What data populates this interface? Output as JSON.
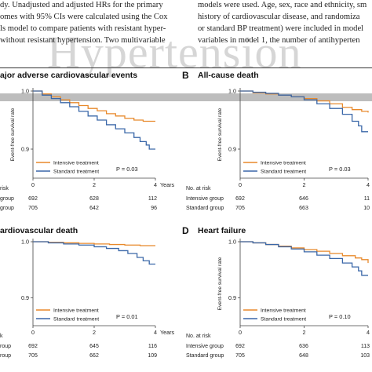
{
  "header_text": {
    "left_lines": [
      "dy. Unadjusted and adjusted HRs for the primary",
      "omes with 95% CIs were calculated using the Cox",
      "ls model to compare patients with resistant hyper-",
      "without resistant hypertension. Two multivariable"
    ],
    "right_lines": [
      "models were used. Age, sex, race and ethnicity, sm",
      "history of cardiovascular disease, and randomiza",
      "or standard BP treatment) were included in model",
      "variables in model 1, the number of antihyperten"
    ],
    "watermark": "Hypertension"
  },
  "colors": {
    "intensive": "#E8892B",
    "standard": "#3A67A8",
    "axis": "#444444"
  },
  "chart_data": [
    {
      "type": "line",
      "letter": "",
      "title": "ajor adverse cardiovascular events",
      "ylabel": "Event-free survival rate",
      "ylim": [
        0.85,
        1.0
      ],
      "xlim": [
        0,
        4
      ],
      "y_ticks": [
        {
          "v": 1.0,
          "label": "1.0"
        },
        {
          "v": 0.9,
          "label": "0.9"
        }
      ],
      "x_ticks": [
        {
          "v": 0,
          "label": "0"
        },
        {
          "v": 2,
          "label": "2"
        },
        {
          "v": 4,
          "label": "4"
        }
      ],
      "x_unit": "Years",
      "p_value": "P = 0.03",
      "series": [
        {
          "name": "Intensive treatment",
          "color": "#E8892B",
          "x": [
            0,
            0.3,
            0.6,
            0.9,
            1.2,
            1.5,
            1.8,
            2.1,
            2.4,
            2.7,
            3.0,
            3.3,
            3.6,
            3.8,
            4.0
          ],
          "y": [
            1.0,
            0.995,
            0.99,
            0.985,
            0.98,
            0.975,
            0.97,
            0.966,
            0.961,
            0.957,
            0.953,
            0.95,
            0.948,
            0.948,
            0.948
          ]
        },
        {
          "name": "Standard treatment",
          "color": "#3A67A8",
          "x": [
            0,
            0.3,
            0.6,
            0.9,
            1.2,
            1.5,
            1.8,
            2.1,
            2.4,
            2.7,
            3.0,
            3.3,
            3.5,
            3.7,
            3.8,
            4.0
          ],
          "y": [
            1.0,
            0.993,
            0.987,
            0.98,
            0.973,
            0.965,
            0.957,
            0.95,
            0.942,
            0.935,
            0.928,
            0.92,
            0.913,
            0.907,
            0.9,
            0.9
          ]
        }
      ],
      "risk": {
        "header": "risk",
        "rows": [
          {
            "label": "group",
            "values": [
              "692",
              "628",
              "112"
            ]
          },
          {
            "label": "group",
            "values": [
              "705",
              "642",
              "96"
            ]
          }
        ]
      }
    },
    {
      "type": "line",
      "letter": "B",
      "title": "All-cause death",
      "ylabel": "Event-free survival rate",
      "ylim": [
        0.85,
        1.0
      ],
      "xlim": [
        0,
        4
      ],
      "y_ticks": [
        {
          "v": 1.0,
          "label": "1.0"
        },
        {
          "v": 0.9,
          "label": "0.9"
        }
      ],
      "x_ticks": [
        {
          "v": 0,
          "label": "0"
        },
        {
          "v": 2,
          "label": "2"
        },
        {
          "v": 4,
          "label": "4"
        }
      ],
      "x_unit": "",
      "p_value": "P = 0.03",
      "series": [
        {
          "name": "Intensive treatment",
          "color": "#E8892B",
          "x": [
            0,
            0.4,
            0.8,
            1.2,
            1.6,
            2.0,
            2.4,
            2.8,
            3.2,
            3.5,
            3.8,
            4.0
          ],
          "y": [
            1.0,
            0.997,
            0.995,
            0.993,
            0.99,
            0.987,
            0.983,
            0.978,
            0.972,
            0.968,
            0.965,
            0.963
          ]
        },
        {
          "name": "Standard treatment",
          "color": "#3A67A8",
          "x": [
            0,
            0.4,
            0.8,
            1.2,
            1.6,
            2.0,
            2.4,
            2.8,
            3.2,
            3.5,
            3.7,
            3.8,
            4.0
          ],
          "y": [
            1.0,
            0.998,
            0.996,
            0.993,
            0.99,
            0.985,
            0.978,
            0.97,
            0.96,
            0.948,
            0.94,
            0.93,
            0.93
          ]
        }
      ],
      "risk": {
        "header": "No. at risk",
        "rows": [
          {
            "label": "Intensive group",
            "values": [
              "692",
              "646",
              "11"
            ]
          },
          {
            "label": "Standard group",
            "values": [
              "705",
              "663",
              "10"
            ]
          }
        ]
      }
    },
    {
      "type": "line",
      "letter": "",
      "title": "ardiovascular death",
      "ylabel": "",
      "ylim": [
        0.85,
        1.0
      ],
      "xlim": [
        0,
        4
      ],
      "y_ticks": [
        {
          "v": 1.0,
          "label": "1.0"
        },
        {
          "v": 0.9,
          "label": "0.9"
        }
      ],
      "x_ticks": [
        {
          "v": 0,
          "label": "0"
        },
        {
          "v": 2,
          "label": "2"
        },
        {
          "v": 4,
          "label": "4"
        }
      ],
      "x_unit": "Years",
      "p_value": "P = 0.01",
      "series": [
        {
          "name": "Intensive treatment",
          "color": "#E8892B",
          "x": [
            0,
            0.5,
            1.0,
            1.5,
            2.0,
            2.5,
            3.0,
            3.5,
            4.0
          ],
          "y": [
            1.0,
            0.999,
            0.998,
            0.997,
            0.996,
            0.995,
            0.994,
            0.993,
            0.993
          ]
        },
        {
          "name": "Standard treatment",
          "color": "#3A67A8",
          "x": [
            0,
            0.5,
            1.0,
            1.5,
            2.0,
            2.4,
            2.8,
            3.1,
            3.4,
            3.6,
            3.8,
            4.0
          ],
          "y": [
            1.0,
            0.998,
            0.996,
            0.994,
            0.991,
            0.988,
            0.984,
            0.979,
            0.972,
            0.966,
            0.96,
            0.96
          ]
        }
      ],
      "risk": {
        "header": "k",
        "rows": [
          {
            "label": "roup",
            "values": [
              "692",
              "645",
              "116"
            ]
          },
          {
            "label": "roup",
            "values": [
              "705",
              "662",
              "109"
            ]
          }
        ]
      }
    },
    {
      "type": "line",
      "letter": "D",
      "title": "Heart failure",
      "ylabel": "Event-free survival rate",
      "ylim": [
        0.85,
        1.0
      ],
      "xlim": [
        0,
        4
      ],
      "y_ticks": [
        {
          "v": 1.0,
          "label": "1.0"
        },
        {
          "v": 0.9,
          "label": "0.9"
        }
      ],
      "x_ticks": [
        {
          "v": 0,
          "label": "0"
        },
        {
          "v": 2,
          "label": "2"
        },
        {
          "v": 4,
          "label": "4"
        }
      ],
      "x_unit": "",
      "p_value": "P = 0.10",
      "series": [
        {
          "name": "Intensive treatment",
          "color": "#E8892B",
          "x": [
            0,
            0.4,
            0.8,
            1.2,
            1.6,
            2.0,
            2.4,
            2.8,
            3.2,
            3.6,
            3.8,
            4.0
          ],
          "y": [
            1.0,
            0.998,
            0.995,
            0.992,
            0.989,
            0.986,
            0.983,
            0.979,
            0.975,
            0.971,
            0.968,
            0.962
          ]
        },
        {
          "name": "Standard treatment",
          "color": "#3A67A8",
          "x": [
            0,
            0.4,
            0.8,
            1.2,
            1.6,
            2.0,
            2.4,
            2.8,
            3.2,
            3.5,
            3.7,
            3.8,
            4.0
          ],
          "y": [
            1.0,
            0.998,
            0.995,
            0.991,
            0.987,
            0.982,
            0.976,
            0.97,
            0.962,
            0.955,
            0.948,
            0.94,
            0.94
          ]
        }
      ],
      "risk": {
        "header": "No. at risk",
        "rows": [
          {
            "label": "Intensive group",
            "values": [
              "692",
              "636",
              "113"
            ]
          },
          {
            "label": "Standard group",
            "values": [
              "705",
              "648",
              "103"
            ]
          }
        ]
      }
    }
  ]
}
